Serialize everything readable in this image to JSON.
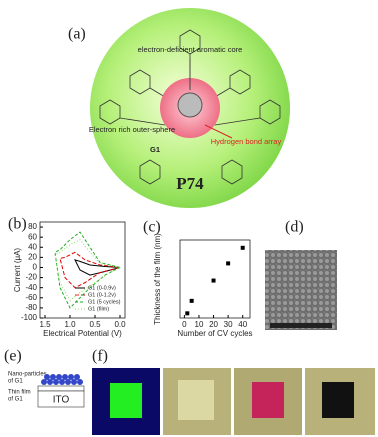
{
  "panel_a": {
    "label": "(a)",
    "core": "electron-deficient aromatic core",
    "outer": "Electron rich outer-sphere",
    "guest": "G1",
    "hbond": "Hydrogen bond array",
    "name": "P74"
  },
  "chart_data": [
    {
      "type": "line",
      "label": "(b)",
      "xlabel": "Electrical Potential (V)",
      "ylabel": "Current (μA)",
      "xlim": [
        1.6,
        -0.1
      ],
      "ylim": [
        -100,
        90
      ],
      "xticks": [
        1.5,
        {
          "value": 1,
          "label": "1.0"
        },
        0.5,
        {
          "value": 0,
          "label": "0.0"
        }
      ],
      "yticks": [
        -100,
        -80,
        -60,
        -40,
        -20,
        0,
        20,
        40,
        60,
        80
      ],
      "series": [
        {
          "name": "G1 (0-0.9v)",
          "color": "#000000",
          "dash": "",
          "x": [
            0.0,
            0.3,
            0.6,
            0.8,
            0.9,
            0.8,
            0.6,
            0.3,
            0.0
          ],
          "values": [
            0,
            2,
            5,
            12,
            15,
            -5,
            -15,
            -8,
            0
          ]
        },
        {
          "name": "G1 (0-1.2v)",
          "color": "#e00000",
          "dash": "4,2",
          "x": [
            0.0,
            0.4,
            0.7,
            0.9,
            1.1,
            1.2,
            1.1,
            0.9,
            0.7,
            0.4,
            0.0
          ],
          "values": [
            0,
            5,
            15,
            30,
            20,
            18,
            -20,
            -40,
            -30,
            -10,
            0
          ]
        },
        {
          "name": "G1 (5 cycles)",
          "color": "#22aa22",
          "dash": "3,2",
          "x": [
            0.0,
            0.4,
            0.6,
            0.8,
            1.0,
            1.2,
            1.3,
            1.2,
            1.0,
            0.8,
            0.6,
            0.3,
            0.0
          ],
          "values": [
            0,
            10,
            40,
            70,
            55,
            35,
            30,
            -40,
            -80,
            -60,
            -40,
            -15,
            0
          ]
        },
        {
          "name": "G1 (film)",
          "color": "#88dd66",
          "dash": "1,2",
          "x": [
            0.0,
            0.4,
            0.6,
            0.8,
            1.0,
            1.2,
            1.3,
            1.2,
            1.0,
            0.8,
            0.5,
            0.2,
            0.0
          ],
          "values": [
            0,
            8,
            30,
            55,
            45,
            30,
            25,
            -30,
            -65,
            -50,
            -30,
            -10,
            0
          ]
        }
      ]
    },
    {
      "type": "scatter",
      "label": "(c)",
      "xlabel": "Number of CV cycles",
      "ylabel": "Thickness of the film (nm)",
      "xlim": [
        -3,
        45
      ],
      "ylim": [
        -10,
        240
      ],
      "xticks": [
        0,
        10,
        20,
        30,
        40
      ],
      "color": "#000000",
      "x": [
        2,
        5,
        20,
        30,
        40
      ],
      "values": [
        5,
        45,
        110,
        165,
        215
      ]
    }
  ],
  "panel_d": {
    "label": "(d)"
  },
  "panel_e": {
    "label": "(e)",
    "particles": "Nano-particles",
    "particles_of": "of G1",
    "film": "Thin film",
    "film_of": "of G1",
    "substrate": "ITO"
  },
  "panel_f": {
    "label": "(f)"
  }
}
